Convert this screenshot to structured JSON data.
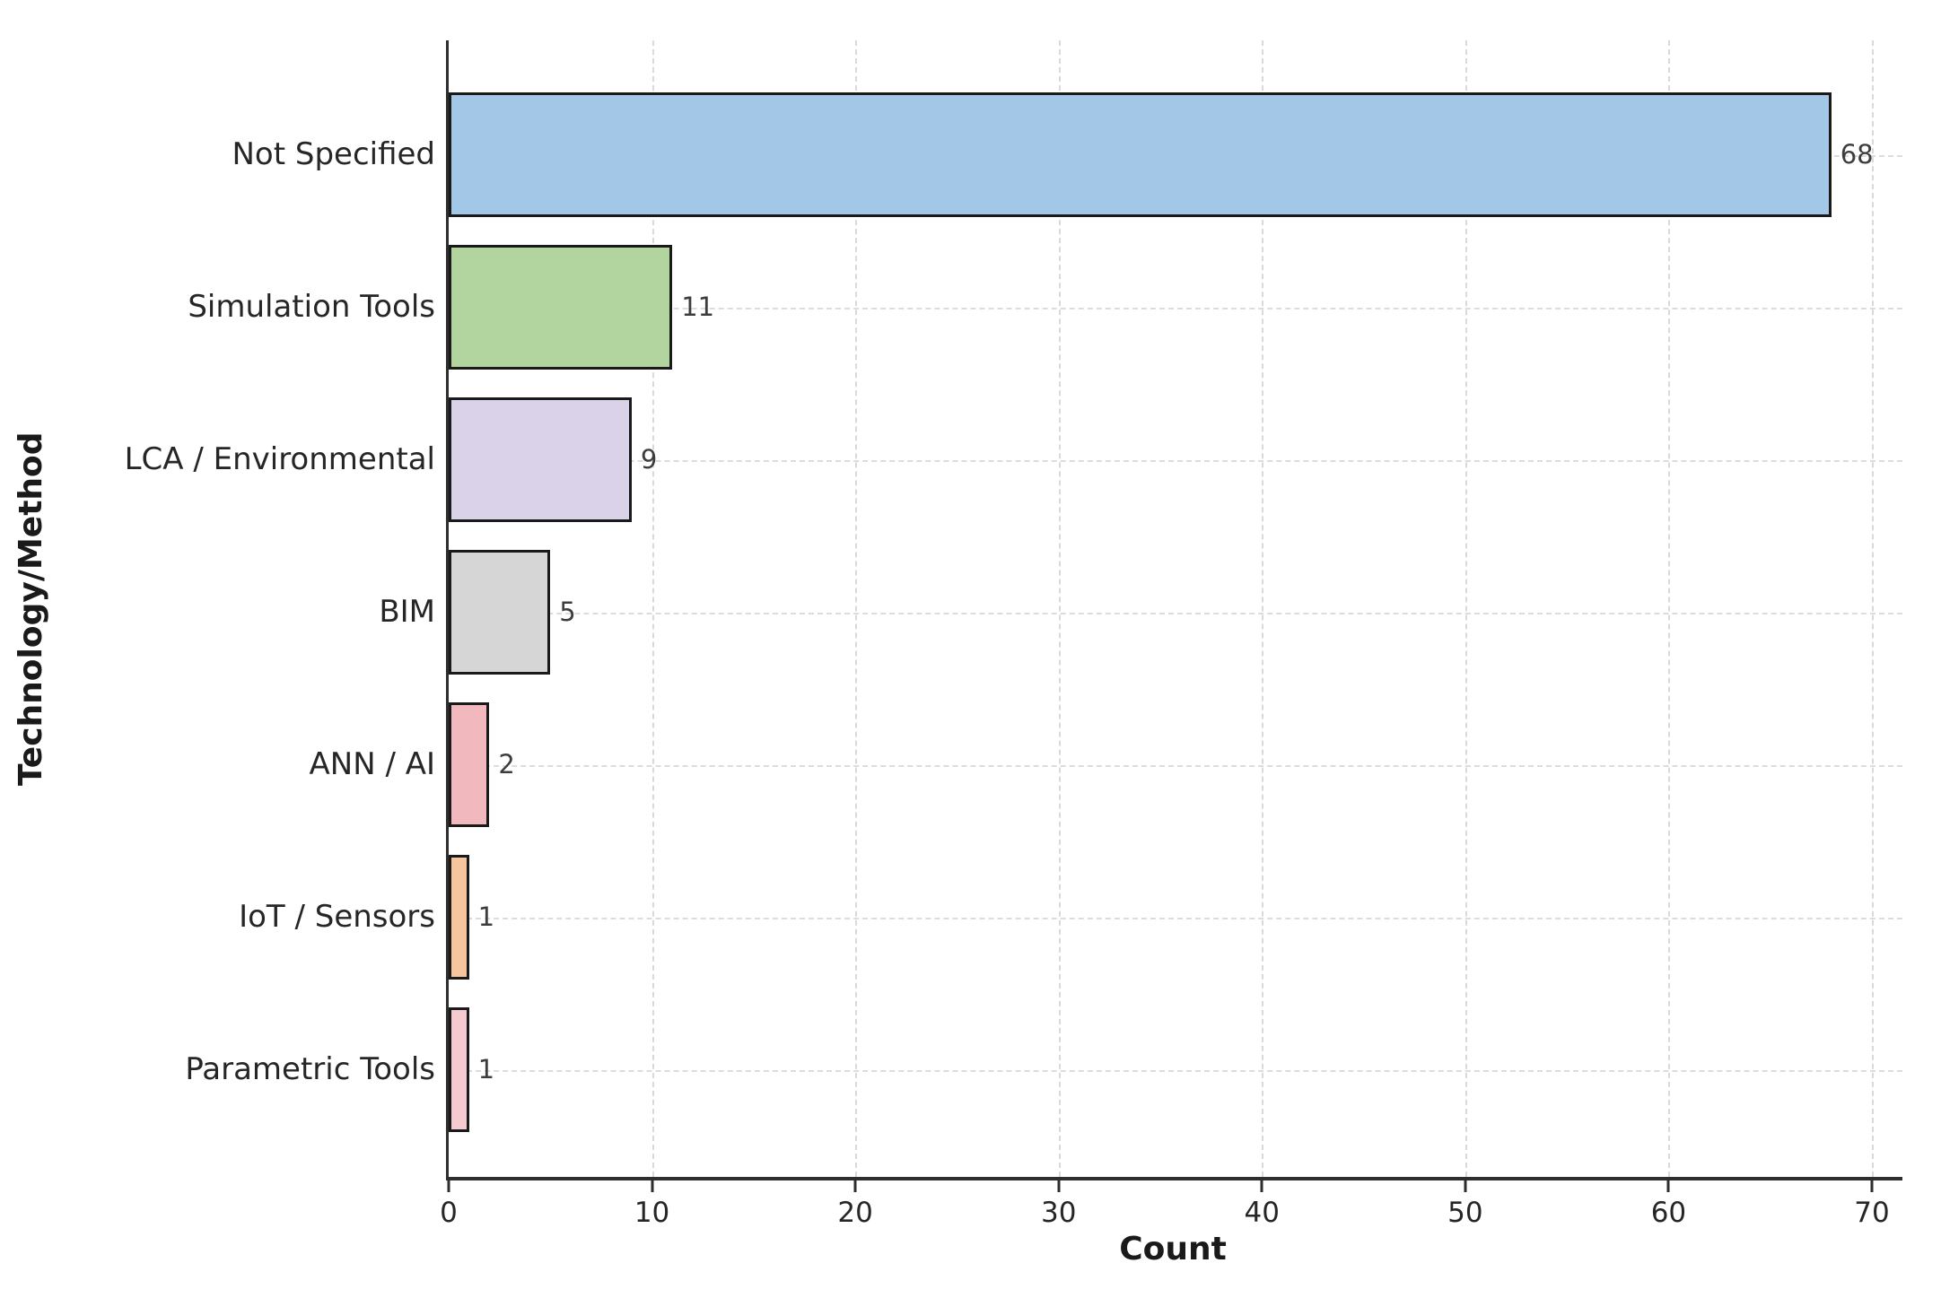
{
  "chart_data": {
    "type": "bar",
    "orientation": "horizontal",
    "xlabel": "Count",
    "ylabel": "Technology/Method",
    "categories": [
      "Not Specified",
      "Simulation Tools",
      "LCA / Environmental",
      "BIM",
      "ANN / AI",
      "IoT / Sensors",
      "Parametric Tools"
    ],
    "values": [
      68,
      11,
      9,
      5,
      2,
      1,
      1
    ],
    "value_labels": [
      "68",
      "11",
      "9",
      "5",
      "2",
      "1",
      "1"
    ],
    "bar_colors": [
      "#a2c7e7",
      "#b2d5a0",
      "#d9d2e9",
      "#d6d6d6",
      "#f1b9bd",
      "#f6c59e",
      "#f5cad0"
    ],
    "bar_edge_color": "#1a1a1a",
    "x_ticks": [
      0,
      10,
      20,
      30,
      40,
      50,
      60,
      70
    ],
    "xlim": [
      0,
      71.5
    ],
    "grid": "dashed",
    "grid_color": "#d9d9d9",
    "legend": "none",
    "title": ""
  }
}
